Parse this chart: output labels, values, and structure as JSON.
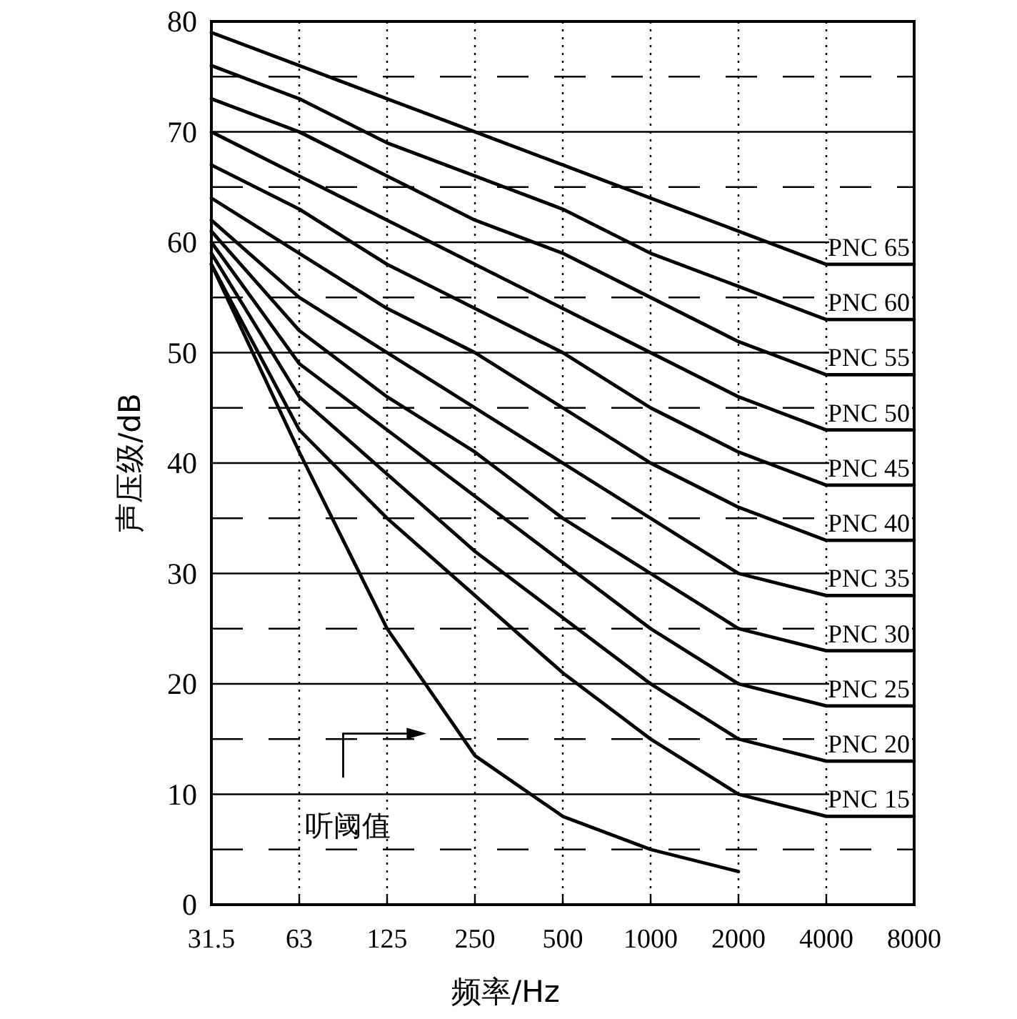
{
  "chart_data": {
    "type": "line",
    "xlabel": "频率/Hz",
    "ylabel": "声压级/dB",
    "categories": [
      "31.5",
      "63",
      "125",
      "250",
      "500",
      "1000",
      "2000",
      "4000",
      "8000"
    ],
    "ylim": [
      0,
      80
    ],
    "yticks": [
      0,
      {
        "value": 5,
        "label": null
      },
      10,
      {
        "value": 15,
        "label": null
      },
      20,
      {
        "value": 25,
        "label": null
      },
      30,
      {
        "value": 35,
        "label": null
      },
      40,
      {
        "value": 45,
        "label": null
      },
      50,
      {
        "value": 55,
        "label": null
      },
      60,
      {
        "value": 65,
        "label": null
      },
      70,
      {
        "value": 75,
        "label": null
      },
      80
    ],
    "grid": true,
    "series": [
      {
        "name": "PNC 65",
        "color": "#000000",
        "values": [
          79,
          76,
          73,
          70,
          67,
          64,
          61,
          58,
          58
        ]
      },
      {
        "name": "PNC 60",
        "color": "#000000",
        "values": [
          76,
          73,
          69,
          66,
          63,
          59,
          56,
          53,
          53
        ]
      },
      {
        "name": "PNC 55",
        "color": "#000000",
        "values": [
          73,
          70,
          66,
          62,
          59,
          55,
          51,
          48,
          48
        ]
      },
      {
        "name": "PNC 50",
        "color": "#000000",
        "values": [
          70,
          66,
          62,
          58,
          54,
          50,
          46,
          43,
          43
        ]
      },
      {
        "name": "PNC 45",
        "color": "#000000",
        "values": [
          67,
          63,
          58,
          54,
          50,
          45,
          41,
          38,
          38
        ]
      },
      {
        "name": "PNC 40",
        "color": "#000000",
        "values": [
          64,
          59,
          54,
          50,
          45,
          40,
          36,
          33,
          33
        ]
      },
      {
        "name": "PNC 35",
        "color": "#000000",
        "values": [
          62,
          55,
          50,
          45,
          40,
          35,
          30,
          28,
          28
        ]
      },
      {
        "name": "PNC 30",
        "color": "#000000",
        "values": [
          61,
          52,
          46,
          41,
          35,
          30,
          25,
          23,
          23
        ]
      },
      {
        "name": "PNC 25",
        "color": "#000000",
        "values": [
          60,
          49,
          43,
          37,
          31,
          25,
          20,
          18,
          18
        ]
      },
      {
        "name": "PNC 20",
        "color": "#000000",
        "values": [
          59,
          46,
          39,
          32,
          26,
          20,
          15,
          13,
          13
        ]
      },
      {
        "name": "PNC 15",
        "color": "#000000",
        "values": [
          58,
          43,
          35,
          28,
          21,
          15,
          10,
          8,
          8
        ]
      },
      {
        "name": "听阈值",
        "color": "#000000",
        "values": [
          58,
          41,
          25,
          13.5,
          8,
          5,
          3,
          null,
          null
        ]
      }
    ]
  }
}
